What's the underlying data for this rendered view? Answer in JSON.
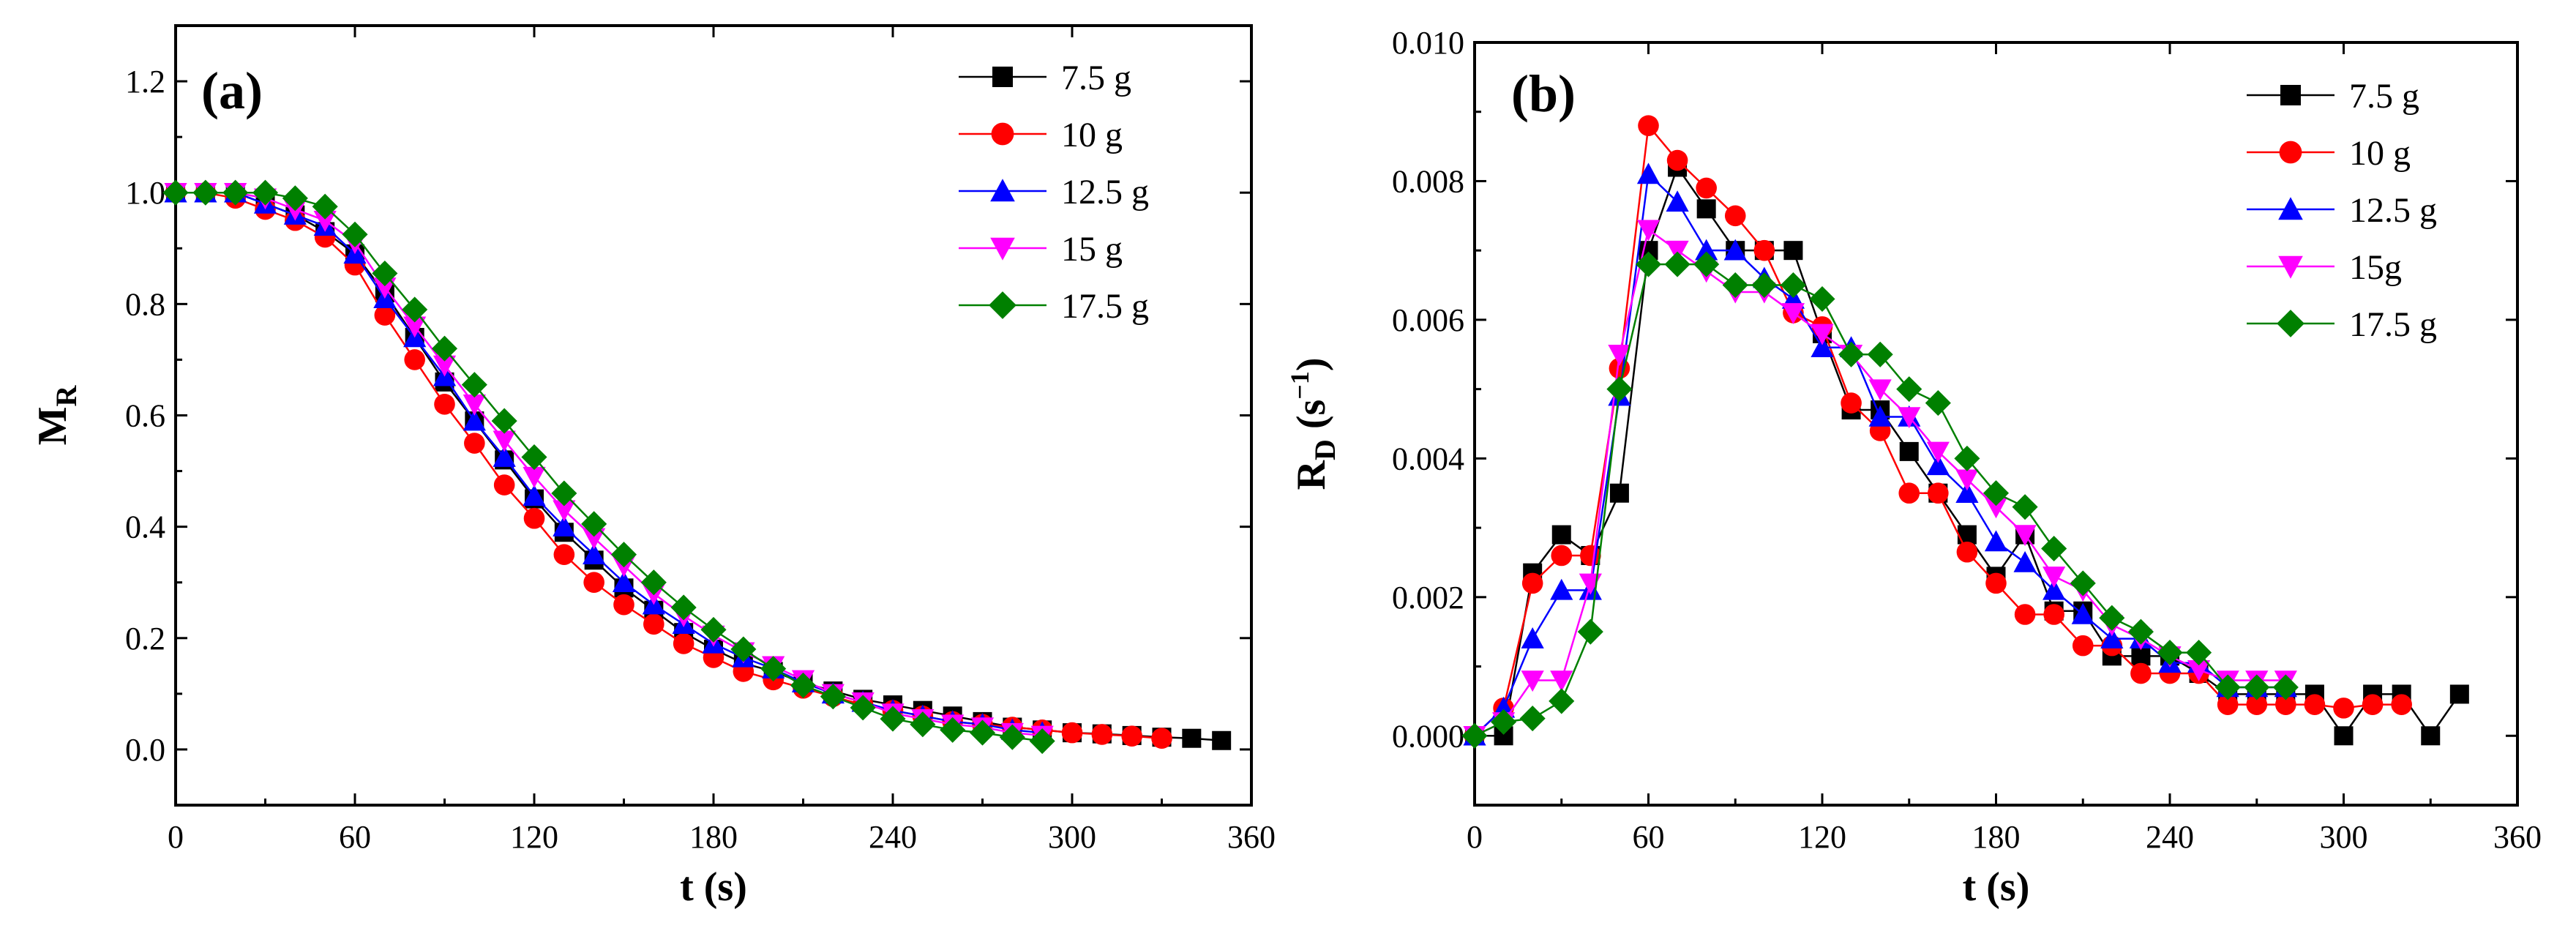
{
  "colors": {
    "7.5 g": "#000000",
    "10 g": "#ff0000",
    "12.5 g": "#0000ff",
    "15 g": "#ff00ff",
    "17.5 g": "#008000"
  },
  "chart_data": [
    {
      "type": "line",
      "panel_label": "(a)",
      "xlabel": "t (s)",
      "ylabel_main": "M",
      "ylabel_sub": "R",
      "ylabel_sup": "",
      "ylabel_tail": "",
      "xlim": [
        0,
        360
      ],
      "ylim": [
        -0.1,
        1.3
      ],
      "xticks": [
        0,
        60,
        120,
        180,
        240,
        300,
        360
      ],
      "yticks": [
        0.0,
        0.2,
        0.4,
        0.6,
        0.8,
        1.0,
        1.2
      ],
      "ytick_labels": [
        "0.0",
        "0.2",
        "0.4",
        "0.6",
        "0.8",
        "1.0",
        "1.2"
      ],
      "legend_position": "top-right",
      "series": [
        {
          "name": "7.5 g",
          "marker": "square",
          "color_key": "7.5 g",
          "x": [
            0,
            10,
            20,
            30,
            40,
            50,
            60,
            70,
            80,
            90,
            100,
            110,
            120,
            130,
            140,
            150,
            160,
            170,
            180,
            190,
            200,
            210,
            220,
            230,
            240,
            250,
            260,
            270,
            280,
            290,
            300,
            310,
            320,
            330,
            340,
            350
          ],
          "y": [
            1.0,
            1.0,
            1.0,
            0.98,
            0.96,
            0.93,
            0.89,
            0.82,
            0.74,
            0.66,
            0.59,
            0.52,
            0.45,
            0.39,
            0.34,
            0.29,
            0.25,
            0.21,
            0.18,
            0.155,
            0.14,
            0.12,
            0.105,
            0.09,
            0.08,
            0.07,
            0.06,
            0.05,
            0.04,
            0.035,
            0.03,
            0.028,
            0.025,
            0.022,
            0.02,
            0.016
          ]
        },
        {
          "name": "10 g",
          "marker": "circle",
          "color_key": "10 g",
          "x": [
            0,
            10,
            20,
            30,
            40,
            50,
            60,
            70,
            80,
            90,
            100,
            110,
            120,
            130,
            140,
            150,
            160,
            170,
            180,
            190,
            200,
            210,
            220,
            230,
            240,
            250,
            260,
            270,
            280,
            290,
            300,
            310,
            320,
            330
          ],
          "y": [
            1.0,
            1.0,
            0.99,
            0.97,
            0.95,
            0.92,
            0.87,
            0.78,
            0.7,
            0.62,
            0.55,
            0.475,
            0.415,
            0.35,
            0.3,
            0.26,
            0.225,
            0.19,
            0.165,
            0.14,
            0.125,
            0.11,
            0.095,
            0.08,
            0.07,
            0.06,
            0.05,
            0.045,
            0.04,
            0.035,
            0.03,
            0.027,
            0.024,
            0.02
          ]
        },
        {
          "name": "12.5 g",
          "marker": "triangle-up",
          "color_key": "12.5 g",
          "x": [
            0,
            10,
            20,
            30,
            40,
            50,
            60,
            70,
            80,
            90,
            100,
            110,
            120,
            130,
            140,
            150,
            160,
            170,
            180,
            190,
            200,
            210,
            220,
            230,
            240,
            250,
            260,
            270,
            280,
            290
          ],
          "y": [
            1.0,
            1.0,
            1.0,
            0.98,
            0.96,
            0.94,
            0.89,
            0.81,
            0.74,
            0.67,
            0.59,
            0.525,
            0.455,
            0.4,
            0.35,
            0.3,
            0.26,
            0.225,
            0.19,
            0.165,
            0.145,
            0.12,
            0.1,
            0.085,
            0.07,
            0.06,
            0.05,
            0.045,
            0.035,
            0.03
          ]
        },
        {
          "name": "15 g",
          "marker": "triangle-down",
          "color_key": "15 g",
          "x": [
            0,
            10,
            20,
            30,
            40,
            50,
            60,
            70,
            80,
            90,
            100,
            110,
            120,
            130,
            140,
            150,
            160,
            170,
            180,
            190,
            200,
            210,
            220,
            230,
            240,
            250,
            260,
            270,
            280,
            290
          ],
          "y": [
            1.0,
            1.0,
            1.0,
            0.99,
            0.97,
            0.95,
            0.91,
            0.83,
            0.76,
            0.69,
            0.62,
            0.555,
            0.49,
            0.43,
            0.38,
            0.33,
            0.28,
            0.24,
            0.205,
            0.175,
            0.15,
            0.125,
            0.1,
            0.085,
            0.065,
            0.055,
            0.045,
            0.04,
            0.03,
            0.025
          ]
        },
        {
          "name": "17.5 g",
          "marker": "diamond",
          "color_key": "17.5 g",
          "x": [
            0,
            10,
            20,
            30,
            40,
            50,
            60,
            70,
            80,
            90,
            100,
            110,
            120,
            130,
            140,
            150,
            160,
            170,
            180,
            190,
            200,
            210,
            220,
            230,
            240,
            250,
            260,
            270,
            280,
            290
          ],
          "y": [
            1.0,
            1.0,
            1.0,
            1.0,
            0.99,
            0.975,
            0.925,
            0.855,
            0.79,
            0.72,
            0.655,
            0.59,
            0.525,
            0.46,
            0.405,
            0.35,
            0.3,
            0.255,
            0.215,
            0.18,
            0.145,
            0.115,
            0.095,
            0.075,
            0.055,
            0.045,
            0.035,
            0.03,
            0.022,
            0.015
          ]
        }
      ]
    },
    {
      "type": "line",
      "panel_label": "(b)",
      "xlabel": "t (s)",
      "ylabel_main": "R",
      "ylabel_sub": "D",
      "ylabel_sup": "−1",
      "ylabel_tail": ")",
      "ylabel_mid": " (s",
      "xlim": [
        0,
        360
      ],
      "ylim": [
        -0.001,
        0.01
      ],
      "xticks": [
        0,
        60,
        120,
        180,
        240,
        300,
        360
      ],
      "yticks": [
        0.0,
        0.002,
        0.004,
        0.006,
        0.008,
        0.01
      ],
      "ytick_labels": [
        "0.000",
        "0.002",
        "0.004",
        "0.006",
        "0.008",
        "0.010"
      ],
      "legend_position": "top-right",
      "series": [
        {
          "name": "7.5 g",
          "marker": "square",
          "color_key": "7.5 g",
          "x": [
            0,
            10,
            20,
            30,
            40,
            50,
            60,
            70,
            80,
            90,
            100,
            110,
            120,
            130,
            140,
            150,
            160,
            170,
            180,
            190,
            200,
            210,
            220,
            230,
            240,
            250,
            260,
            270,
            280,
            290,
            300,
            310,
            320,
            330,
            340
          ],
          "y": [
            0.0,
            0.0,
            0.00235,
            0.0029,
            0.0026,
            0.0035,
            0.007,
            0.0082,
            0.0076,
            0.007,
            0.007,
            0.007,
            0.0058,
            0.0047,
            0.0047,
            0.0041,
            0.0035,
            0.0029,
            0.0023,
            0.0029,
            0.0018,
            0.0018,
            0.00115,
            0.00115,
            0.00115,
            0.0009,
            0.0006,
            0.0006,
            0.0006,
            0.0006,
            0.0,
            0.0006,
            0.0006,
            0.0,
            0.0006
          ]
        },
        {
          "name": "10 g",
          "marker": "circle",
          "color_key": "10 g",
          "x": [
            0,
            10,
            20,
            30,
            40,
            50,
            60,
            70,
            80,
            90,
            100,
            110,
            120,
            130,
            140,
            150,
            160,
            170,
            180,
            190,
            200,
            210,
            220,
            230,
            240,
            250,
            260,
            270,
            280,
            290,
            300,
            310,
            320
          ],
          "y": [
            0.0,
            0.0004,
            0.0022,
            0.0026,
            0.0026,
            0.0053,
            0.0088,
            0.0083,
            0.0079,
            0.0075,
            0.007,
            0.0061,
            0.0059,
            0.0048,
            0.0044,
            0.0035,
            0.0035,
            0.00265,
            0.0022,
            0.00175,
            0.00175,
            0.0013,
            0.0013,
            0.0009,
            0.0009,
            0.0009,
            0.00045,
            0.00045,
            0.00045,
            0.00045,
            0.0004,
            0.00045,
            0.00045
          ]
        },
        {
          "name": "12.5 g",
          "marker": "triangle-up",
          "color_key": "12.5 g",
          "x": [
            0,
            10,
            20,
            30,
            40,
            50,
            60,
            70,
            80,
            90,
            100,
            110,
            120,
            130,
            140,
            150,
            160,
            170,
            180,
            190,
            200,
            210,
            220,
            230,
            240,
            250,
            260,
            270,
            280
          ],
          "y": [
            0.0,
            0.0004,
            0.0014,
            0.0021,
            0.0021,
            0.0049,
            0.0081,
            0.0077,
            0.007,
            0.007,
            0.0066,
            0.0063,
            0.0056,
            0.0056,
            0.0046,
            0.0046,
            0.0039,
            0.0035,
            0.0028,
            0.0025,
            0.0021,
            0.00175,
            0.0014,
            0.0014,
            0.00105,
            0.00105,
            0.0007,
            0.0007,
            0.0007
          ]
        },
        {
          "name": "15g",
          "marker": "triangle-down",
          "color_key": "15 g",
          "x": [
            0,
            10,
            20,
            30,
            40,
            50,
            60,
            70,
            80,
            90,
            100,
            110,
            120,
            130,
            140,
            150,
            160,
            170,
            180,
            190,
            200,
            210,
            220,
            230,
            240,
            250,
            260,
            270,
            280
          ],
          "y": [
            0.0,
            0.0002,
            0.0008,
            0.0008,
            0.0022,
            0.0055,
            0.0073,
            0.007,
            0.0067,
            0.0064,
            0.0064,
            0.0061,
            0.0058,
            0.0055,
            0.005,
            0.0046,
            0.0041,
            0.0037,
            0.0033,
            0.0029,
            0.0023,
            0.0021,
            0.0016,
            0.0014,
            0.00115,
            0.00095,
            0.0008,
            0.0008,
            0.0008
          ]
        },
        {
          "name": "17.5 g",
          "marker": "diamond",
          "color_key": "17.5 g",
          "x": [
            0,
            10,
            20,
            30,
            40,
            50,
            60,
            70,
            80,
            90,
            100,
            110,
            120,
            130,
            140,
            150,
            160,
            170,
            180,
            190,
            200,
            210,
            220,
            230,
            240,
            250,
            260,
            270,
            280
          ],
          "y": [
            0.0,
            0.0002,
            0.00025,
            0.0005,
            0.0015,
            0.005,
            0.0068,
            0.0068,
            0.0068,
            0.0065,
            0.0065,
            0.0065,
            0.0063,
            0.0055,
            0.0055,
            0.005,
            0.0048,
            0.004,
            0.0035,
            0.0033,
            0.0027,
            0.0022,
            0.0017,
            0.0015,
            0.0012,
            0.0012,
            0.0007,
            0.0007,
            0.0007
          ]
        }
      ]
    }
  ]
}
